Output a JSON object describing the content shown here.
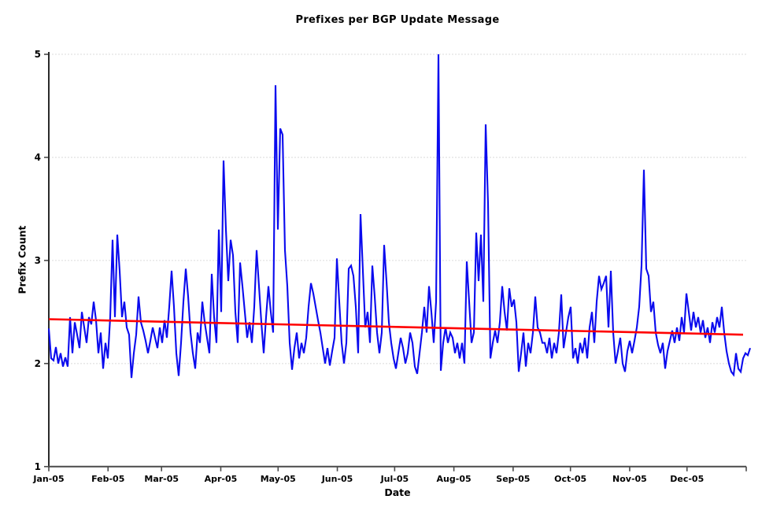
{
  "title": "Prefixes per BGP Update Message",
  "axes": {
    "y_label": "Prefix Count",
    "x_label": "Date",
    "y_ticks": [
      1,
      2,
      3,
      4,
      5
    ],
    "x_tick_labels": [
      "Jan-05",
      "Feb-05",
      "Mar-05",
      "Apr-05",
      "May-05",
      "Jun-05",
      "Jul-05",
      "Aug-05",
      "Sep-05",
      "Oct-05",
      "Nov-05",
      "Dec-05"
    ]
  },
  "colors": {
    "series": "#0a0aee",
    "trend": "#ff0000",
    "grid": "#e7e7e7",
    "axis": "#4a4a4a",
    "text": "#000000",
    "background": "#ffffff"
  },
  "chart_data": {
    "type": "line",
    "title": "Prefixes per BGP Update Message",
    "xlabel": "Date",
    "ylabel": "Prefix Count",
    "ylim": [
      1,
      5
    ],
    "x_range": [
      "Jan-05",
      "Dec-05"
    ],
    "grid": "horizontal-dotted",
    "x_tick_labels": [
      "Jan-05",
      "Feb-05",
      "Mar-05",
      "Apr-05",
      "May-05",
      "Jun-05",
      "Jul-05",
      "Aug-05",
      "Sep-05",
      "Oct-05",
      "Nov-05",
      "Dec-05"
    ],
    "month_day_offsets": [
      0,
      31,
      59,
      90,
      120,
      151,
      181,
      212,
      243,
      273,
      304,
      334,
      365
    ],
    "series": [
      {
        "name": "prefix-count",
        "color": "#0a0aee",
        "sampling": "equally spaced samples, Jan-05 through Dec-05",
        "values": [
          2.34,
          2.05,
          2.03,
          2.16,
          2.0,
          2.1,
          1.97,
          2.06,
          1.97,
          2.45,
          2.1,
          2.4,
          2.28,
          2.15,
          2.5,
          2.35,
          2.2,
          2.45,
          2.38,
          2.6,
          2.42,
          2.1,
          2.3,
          1.95,
          2.2,
          2.05,
          2.45,
          3.2,
          2.45,
          3.25,
          2.9,
          2.45,
          2.6,
          2.35,
          2.28,
          1.86,
          2.1,
          2.28,
          2.65,
          2.4,
          2.32,
          2.22,
          2.1,
          2.22,
          2.35,
          2.25,
          2.15,
          2.35,
          2.2,
          2.42,
          2.25,
          2.55,
          2.9,
          2.55,
          2.1,
          1.88,
          2.2,
          2.6,
          2.92,
          2.65,
          2.3,
          2.1,
          1.95,
          2.3,
          2.2,
          2.6,
          2.4,
          2.25,
          2.1,
          2.87,
          2.45,
          2.2,
          3.3,
          2.5,
          3.97,
          3.3,
          2.8,
          3.2,
          3.05,
          2.5,
          2.2,
          2.98,
          2.75,
          2.5,
          2.25,
          2.4,
          2.2,
          2.55,
          3.1,
          2.75,
          2.4,
          2.1,
          2.45,
          2.75,
          2.5,
          2.3,
          4.7,
          3.3,
          4.28,
          4.22,
          3.1,
          2.75,
          2.2,
          1.94,
          2.15,
          2.3,
          2.05,
          2.2,
          2.1,
          2.25,
          2.55,
          2.78,
          2.68,
          2.55,
          2.42,
          2.3,
          2.15,
          2.0,
          2.15,
          1.98,
          2.12,
          2.25,
          3.02,
          2.6,
          2.2,
          2.0,
          2.2,
          2.92,
          2.95,
          2.85,
          2.55,
          2.1,
          3.45,
          2.9,
          2.35,
          2.5,
          2.2,
          2.95,
          2.65,
          2.3,
          2.1,
          2.3,
          3.15,
          2.8,
          2.4,
          2.2,
          2.05,
          1.95,
          2.1,
          2.25,
          2.15,
          2.0,
          2.1,
          2.3,
          2.2,
          1.97,
          1.9,
          2.1,
          2.3,
          2.55,
          2.3,
          2.75,
          2.5,
          2.2,
          2.6,
          5.0,
          1.93,
          2.2,
          2.35,
          2.2,
          2.3,
          2.25,
          2.1,
          2.2,
          2.05,
          2.2,
          2.0,
          2.99,
          2.6,
          2.2,
          2.3,
          3.27,
          2.8,
          3.25,
          2.6,
          4.32,
          3.55,
          2.05,
          2.2,
          2.32,
          2.2,
          2.4,
          2.75,
          2.5,
          2.32,
          2.73,
          2.55,
          2.62,
          2.4,
          1.92,
          2.1,
          2.3,
          1.97,
          2.2,
          2.1,
          2.3,
          2.65,
          2.35,
          2.3,
          2.2,
          2.2,
          2.1,
          2.25,
          2.05,
          2.2,
          2.1,
          2.3,
          2.67,
          2.15,
          2.3,
          2.45,
          2.55,
          2.05,
          2.15,
          2.0,
          2.2,
          2.1,
          2.25,
          2.05,
          2.35,
          2.5,
          2.2,
          2.6,
          2.85,
          2.72,
          2.78,
          2.85,
          2.35,
          2.9,
          2.3,
          2.0,
          2.12,
          2.25,
          2.0,
          1.92,
          2.12,
          2.22,
          2.1,
          2.22,
          2.35,
          2.55,
          2.95,
          3.88,
          2.92,
          2.85,
          2.5,
          2.6,
          2.3,
          2.18,
          2.1,
          2.2,
          1.95,
          2.12,
          2.22,
          2.32,
          2.2,
          2.35,
          2.22,
          2.45,
          2.3,
          2.68,
          2.5,
          2.32,
          2.5,
          2.35,
          2.45,
          2.3,
          2.42,
          2.25,
          2.35,
          2.2,
          2.4,
          2.3,
          2.45,
          2.35,
          2.55,
          2.3,
          2.12,
          2.0,
          1.92,
          1.89,
          2.1,
          1.95,
          1.92,
          2.05,
          2.1,
          2.08,
          2.15
        ]
      },
      {
        "name": "trend",
        "type": "linear-trend",
        "color": "#ff0000",
        "start_value": 2.43,
        "end_value": 2.28
      }
    ]
  }
}
